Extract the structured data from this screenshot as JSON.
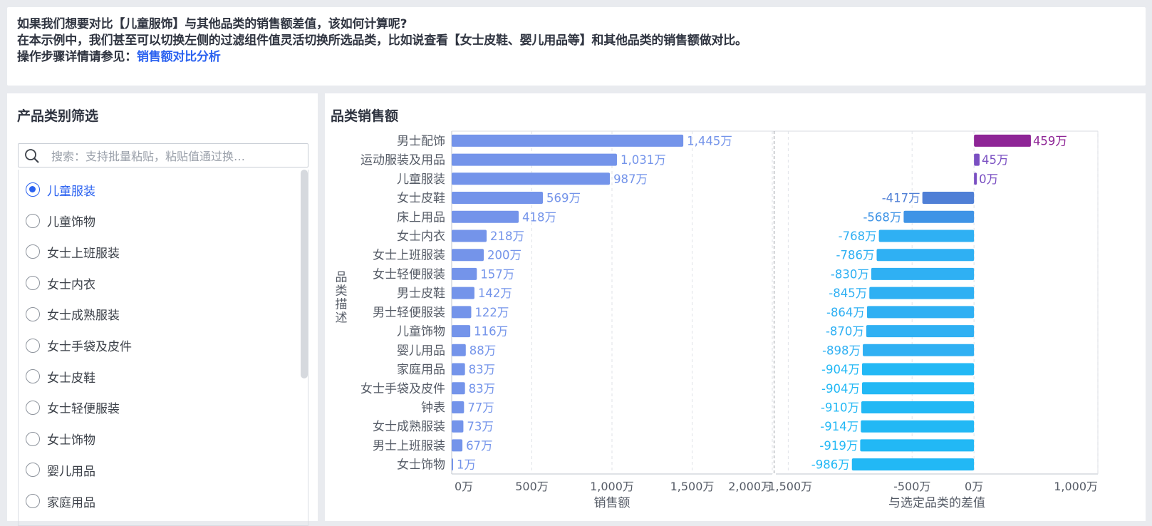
{
  "intro": {
    "line1": "如果我们想要对比【儿童服饰】与其他品类的销售额差值，该如何计算呢?",
    "line2": "在本示例中，我们甚至可以切换左侧的过滤组件值灵活切换所选品类，比如说查看【女士皮鞋、婴儿用品等】和其他品类的销售额做对比。",
    "line3_prefix": "操作步骤详情请参见：",
    "line3_link": "销售额对比分析"
  },
  "filter": {
    "title": "产品类别筛选",
    "search_placeholder": "搜索：支持批量粘贴，粘贴值通过换…",
    "options": [
      "儿童服装",
      "儿童饰物",
      "女士上班服装",
      "女士内衣",
      "女士成熟服装",
      "女士手袋及皮件",
      "女士皮鞋",
      "女士轻便服装",
      "女士饰物",
      "婴儿用品",
      "家庭用品"
    ],
    "selected": "儿童服装"
  },
  "chart_panel": {
    "title": "品类销售额"
  },
  "colors": {
    "bar_main": "#7494ea",
    "diff_positive": "#8e2596",
    "diff_purple_small": "#7a4fc2",
    "diff_dark_blue": "#4f7fd6",
    "diff_mid_blue": "#3f94e6",
    "diff_light_blue": "#2fb0f3",
    "diff_cyan": "#22b8f5"
  },
  "chart_data": {
    "type": "bar",
    "orientation": "horizontal",
    "ylabel": "品类描述",
    "categories": [
      "男士配饰",
      "运动服装及用品",
      "儿童服装",
      "女士皮鞋",
      "床上用品",
      "女士内衣",
      "女士上班服装",
      "女士轻便服装",
      "男士皮鞋",
      "男士轻便服装",
      "儿童饰物",
      "婴儿用品",
      "家庭用品",
      "女士手袋及皮件",
      "钟表",
      "女士成熟服装",
      "男士上班服装",
      "女士饰物"
    ],
    "series": [
      {
        "name": "销售额",
        "values": [
          1445,
          1031,
          987,
          569,
          418,
          218,
          200,
          157,
          142,
          122,
          116,
          88,
          83,
          83,
          77,
          73,
          67,
          1
        ],
        "labels": [
          "1,445万",
          "1,031万",
          "987万",
          "569万",
          "418万",
          "218万",
          "200万",
          "157万",
          "142万",
          "122万",
          "116万",
          "88万",
          "83万",
          "83万",
          "77万",
          "73万",
          "67万",
          "1万"
        ]
      },
      {
        "name": "与选定品类的差值",
        "values": [
          459,
          45,
          0,
          -417,
          -568,
          -768,
          -786,
          -830,
          -845,
          -864,
          -870,
          -898,
          -904,
          -904,
          -910,
          -914,
          -919,
          -986
        ],
        "labels": [
          "459万",
          "45万",
          "0万",
          "-417万",
          "-568万",
          "-768万",
          "-786万",
          "-830万",
          "-845万",
          "-864万",
          "-870万",
          "-898万",
          "-904万",
          "-904万",
          "-910万",
          "-914万",
          "-919万",
          "-986万"
        ]
      }
    ],
    "axes": [
      {
        "xlabel": "销售额",
        "xlim": [
          0,
          2000
        ],
        "ticks": [
          0,
          500,
          1000,
          1500,
          2000
        ],
        "tick_labels": [
          "0万",
          "500万",
          "1,000万",
          "1,500万",
          "2,000万"
        ]
      },
      {
        "xlabel": "与选定品类的差值",
        "xlim": [
          -1600,
          1000
        ],
        "ticks": [
          -1500,
          -500,
          0,
          1000
        ],
        "tick_labels": [
          "-1,500万",
          "-500万",
          "0万",
          "1,000万"
        ]
      }
    ],
    "grid": true
  }
}
